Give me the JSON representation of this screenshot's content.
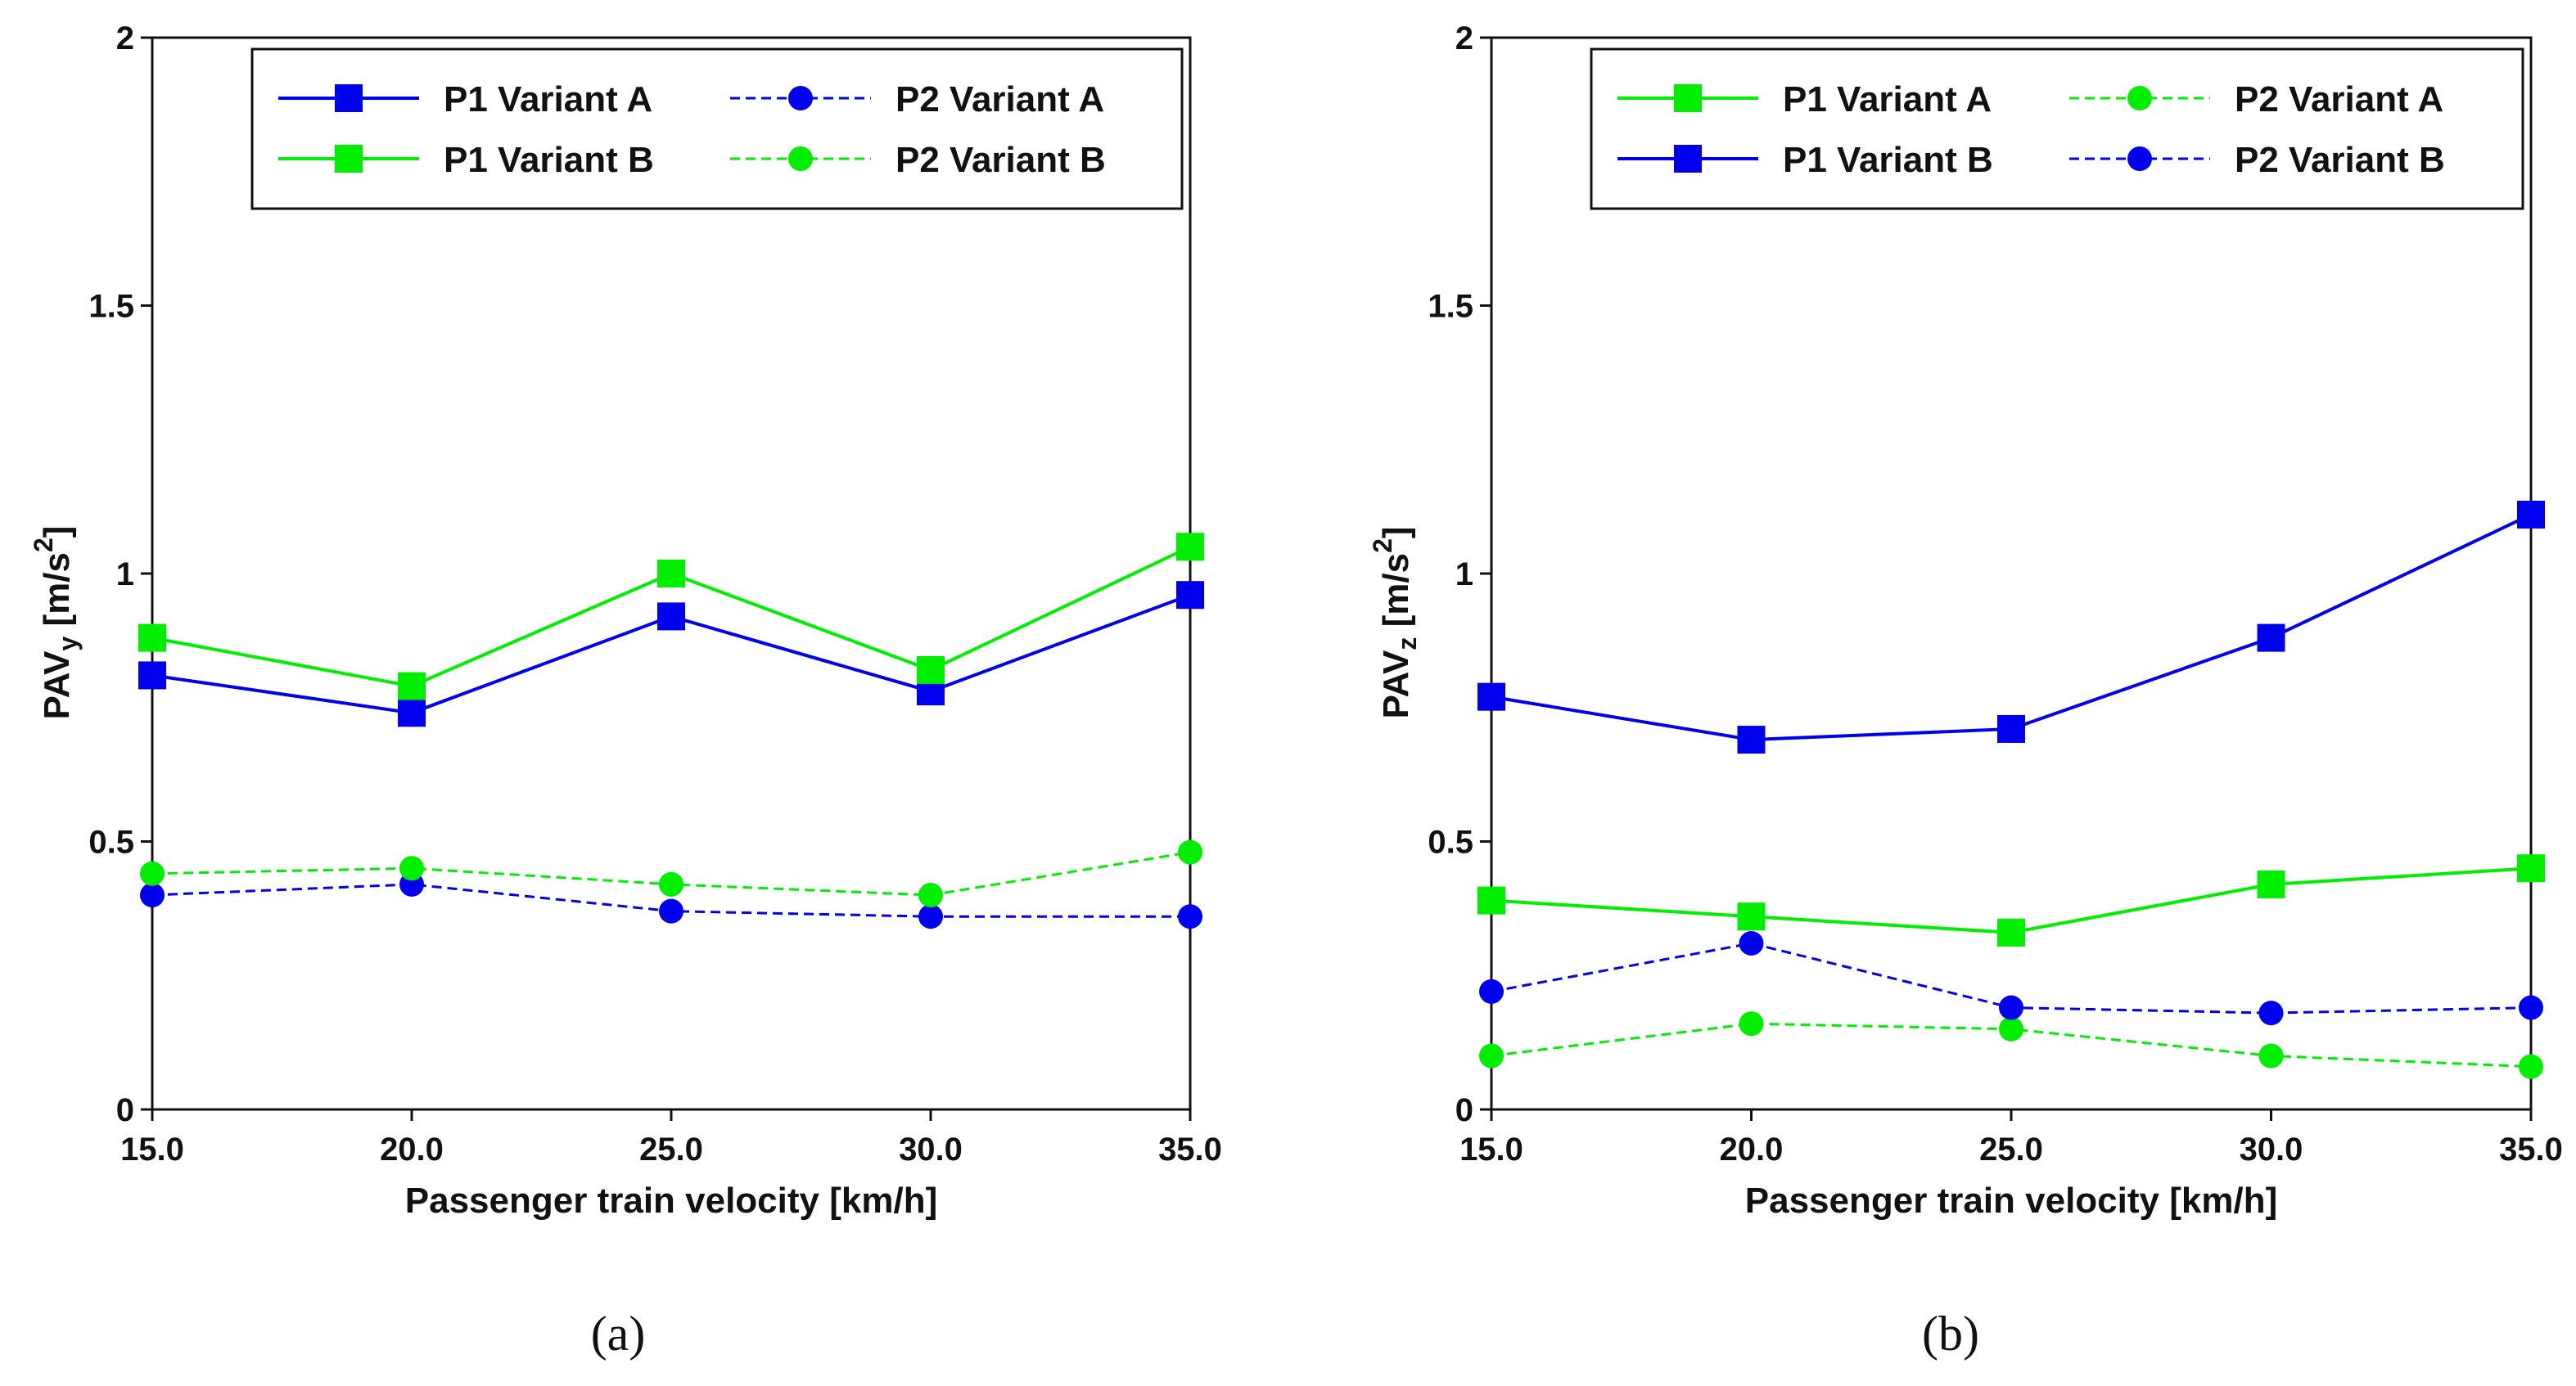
{
  "chart_data": [
    {
      "type": "line",
      "panel_label": "(a)",
      "xlabel": "Passenger train velocity [km/h]",
      "ylabel": "PAVy [m/s2]",
      "ylabel_parts": {
        "main": "PAV",
        "sub": "y",
        "unit_before": " [m/s",
        "sup": "2",
        "unit_after": "]"
      },
      "x": [
        15,
        20,
        25,
        30,
        35
      ],
      "x_tick_labels": [
        "15.0",
        "20.0",
        "25.0",
        "30.0",
        "35.0"
      ],
      "xlim": [
        15,
        35
      ],
      "ylim": [
        0,
        2
      ],
      "y_ticks": [
        0,
        0.5,
        1,
        1.5,
        2
      ],
      "y_tick_labels": [
        "0",
        "0.5",
        "1",
        "1.5",
        "2"
      ],
      "grid": false,
      "legend_position": "top",
      "series": [
        {
          "name": "P1 Variant A",
          "color": "#0000ee",
          "marker": "square",
          "dashed": false,
          "values": [
            0.81,
            0.74,
            0.92,
            0.78,
            0.96
          ]
        },
        {
          "name": "P2 Variant A",
          "color": "#0000ee",
          "marker": "circle",
          "dashed": true,
          "values": [
            0.4,
            0.42,
            0.37,
            0.36,
            0.36
          ]
        },
        {
          "name": "P1 Variant B",
          "color": "#00ee00",
          "marker": "square",
          "dashed": false,
          "values": [
            0.88,
            0.79,
            1.0,
            0.82,
            1.05
          ]
        },
        {
          "name": "P2 Variant B",
          "color": "#00ee00",
          "marker": "circle",
          "dashed": true,
          "values": [
            0.44,
            0.45,
            0.42,
            0.4,
            0.48
          ]
        }
      ]
    },
    {
      "type": "line",
      "panel_label": "(b)",
      "xlabel": "Passenger train velocity [km/h]",
      "ylabel": "PAVz [m/s2]",
      "ylabel_parts": {
        "main": "PAV",
        "sub": "z",
        "unit_before": " [m/s",
        "sup": "2",
        "unit_after": "]"
      },
      "x": [
        15,
        20,
        25,
        30,
        35
      ],
      "x_tick_labels": [
        "15.0",
        "20.0",
        "25.0",
        "30.0",
        "35.0"
      ],
      "xlim": [
        15,
        35
      ],
      "ylim": [
        0,
        2
      ],
      "y_ticks": [
        0,
        0.5,
        1,
        1.5,
        2
      ],
      "y_tick_labels": [
        "0",
        "0.5",
        "1",
        "1.5",
        "2"
      ],
      "grid": false,
      "legend_position": "top",
      "series": [
        {
          "name": "P1 Variant A",
          "color": "#00ee00",
          "marker": "square",
          "dashed": false,
          "values": [
            0.39,
            0.36,
            0.33,
            0.42,
            0.45
          ]
        },
        {
          "name": "P2 Variant A",
          "color": "#00ee00",
          "marker": "circle",
          "dashed": true,
          "values": [
            0.1,
            0.16,
            0.15,
            0.1,
            0.08
          ]
        },
        {
          "name": "P1 Variant B",
          "color": "#0000ee",
          "marker": "square",
          "dashed": false,
          "values": [
            0.77,
            0.69,
            0.71,
            0.88,
            1.11
          ]
        },
        {
          "name": "P2 Variant B",
          "color": "#0000ee",
          "marker": "circle",
          "dashed": true,
          "values": [
            0.22,
            0.31,
            0.19,
            0.18,
            0.19
          ]
        }
      ]
    }
  ]
}
